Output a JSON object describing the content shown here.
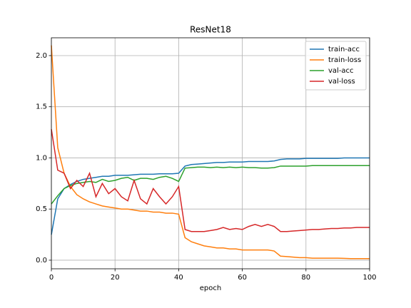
{
  "chart_data": {
    "type": "line",
    "title": "ResNet18",
    "xlabel": "epoch",
    "x": [
      0,
      2,
      4,
      6,
      8,
      10,
      12,
      14,
      16,
      18,
      20,
      22,
      24,
      26,
      28,
      30,
      32,
      34,
      36,
      38,
      40,
      42,
      44,
      46,
      48,
      50,
      52,
      54,
      56,
      58,
      60,
      62,
      64,
      66,
      68,
      70,
      72,
      74,
      76,
      78,
      80,
      82,
      84,
      86,
      88,
      90,
      92,
      94,
      96,
      98,
      100
    ],
    "series": [
      {
        "name": "train-acc",
        "color": "#1f77b4",
        "values": [
          0.25,
          0.6,
          0.7,
          0.74,
          0.77,
          0.79,
          0.8,
          0.81,
          0.82,
          0.82,
          0.83,
          0.83,
          0.83,
          0.835,
          0.84,
          0.84,
          0.84,
          0.845,
          0.845,
          0.845,
          0.85,
          0.92,
          0.935,
          0.94,
          0.945,
          0.95,
          0.955,
          0.955,
          0.96,
          0.96,
          0.96,
          0.965,
          0.965,
          0.965,
          0.965,
          0.97,
          0.985,
          0.99,
          0.99,
          0.99,
          0.995,
          0.995,
          0.995,
          0.995,
          0.995,
          0.995,
          1.0,
          1.0,
          1.0,
          1.0,
          1.0
        ]
      },
      {
        "name": "train-loss",
        "color": "#ff7f0e",
        "values": [
          2.1,
          1.1,
          0.85,
          0.72,
          0.64,
          0.6,
          0.57,
          0.55,
          0.53,
          0.52,
          0.51,
          0.5,
          0.5,
          0.49,
          0.48,
          0.48,
          0.47,
          0.47,
          0.46,
          0.46,
          0.45,
          0.22,
          0.18,
          0.16,
          0.14,
          0.13,
          0.12,
          0.12,
          0.11,
          0.11,
          0.1,
          0.1,
          0.1,
          0.1,
          0.1,
          0.09,
          0.04,
          0.035,
          0.03,
          0.025,
          0.025,
          0.02,
          0.02,
          0.02,
          0.02,
          0.02,
          0.018,
          0.015,
          0.015,
          0.015,
          0.015
        ]
      },
      {
        "name": "val-acc",
        "color": "#2ca02c",
        "values": [
          0.55,
          0.63,
          0.7,
          0.73,
          0.75,
          0.76,
          0.77,
          0.76,
          0.79,
          0.77,
          0.78,
          0.8,
          0.81,
          0.78,
          0.8,
          0.8,
          0.79,
          0.81,
          0.82,
          0.8,
          0.77,
          0.9,
          0.905,
          0.91,
          0.91,
          0.905,
          0.91,
          0.905,
          0.91,
          0.905,
          0.91,
          0.905,
          0.905,
          0.9,
          0.9,
          0.905,
          0.92,
          0.92,
          0.92,
          0.92,
          0.92,
          0.925,
          0.925,
          0.925,
          0.925,
          0.925,
          0.925,
          0.925,
          0.925,
          0.925,
          0.925
        ]
      },
      {
        "name": "val-loss",
        "color": "#d62728",
        "values": [
          1.28,
          0.88,
          0.85,
          0.7,
          0.78,
          0.72,
          0.85,
          0.62,
          0.75,
          0.65,
          0.7,
          0.62,
          0.58,
          0.78,
          0.6,
          0.55,
          0.7,
          0.62,
          0.55,
          0.62,
          0.72,
          0.3,
          0.28,
          0.28,
          0.28,
          0.29,
          0.3,
          0.32,
          0.3,
          0.31,
          0.3,
          0.33,
          0.35,
          0.33,
          0.35,
          0.33,
          0.28,
          0.28,
          0.285,
          0.29,
          0.295,
          0.3,
          0.3,
          0.305,
          0.31,
          0.31,
          0.315,
          0.315,
          0.32,
          0.32,
          0.32
        ]
      }
    ],
    "xlim": [
      0,
      100
    ],
    "xticks": [
      0,
      20,
      40,
      60,
      80,
      100
    ],
    "ylim": [
      -0.084,
      2.174
    ],
    "yticks": [
      {
        "value": 0,
        "label": "0.0"
      },
      0.5,
      {
        "value": 1,
        "label": "1.0"
      },
      1.5,
      {
        "value": 2,
        "label": "2.0"
      }
    ],
    "grid": true,
    "legend": "upper right"
  }
}
